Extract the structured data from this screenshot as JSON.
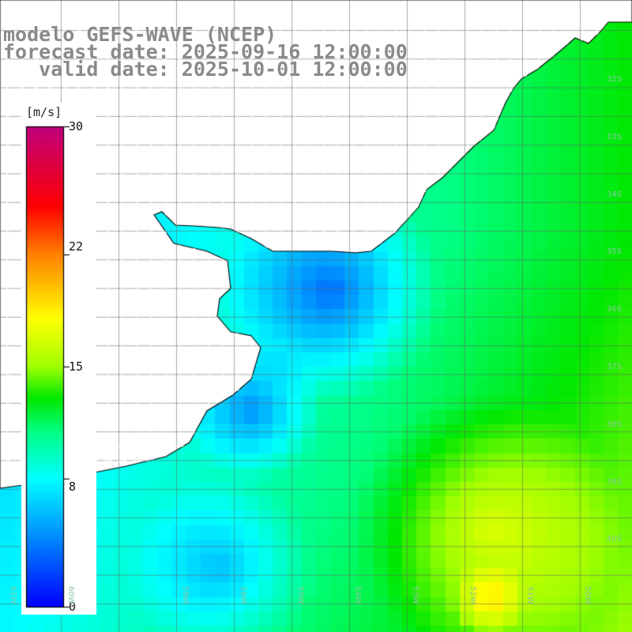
{
  "title": {
    "line1": "modelo GEFS-WAVE (NCEP)",
    "line2": "forecast date: 2025-09-16 12:00:00",
    "line3": "   valid date: 2025-10-01 12:00:00"
  },
  "colorbar": {
    "units": "[m/s]",
    "min": 0,
    "max": 30,
    "ticks": [
      "30",
      "22",
      "15",
      "8",
      "0"
    ],
    "tick_values": [
      30,
      22,
      15,
      8,
      0
    ],
    "colors": [
      "#0000ff",
      "#0090ff",
      "#00ffff",
      "#00e040",
      "#10ee10",
      "#ffff00",
      "#ff8000",
      "#ff0000",
      "#c0007f"
    ]
  },
  "axis_labels": {
    "lat": [
      "32S",
      "33S",
      "34S",
      "35S",
      "36S",
      "37S",
      "38S",
      "39S",
      "40S"
    ],
    "lon": [
      "61W",
      "60W",
      "59W",
      "58W",
      "55W",
      "54W",
      "53W",
      "52W",
      "51W",
      "50W"
    ]
  },
  "map": {
    "land_color": "#ffffff",
    "grid_color": "#888888",
    "coast_color": "#000000",
    "arrow_color": "#ffffff"
  }
}
